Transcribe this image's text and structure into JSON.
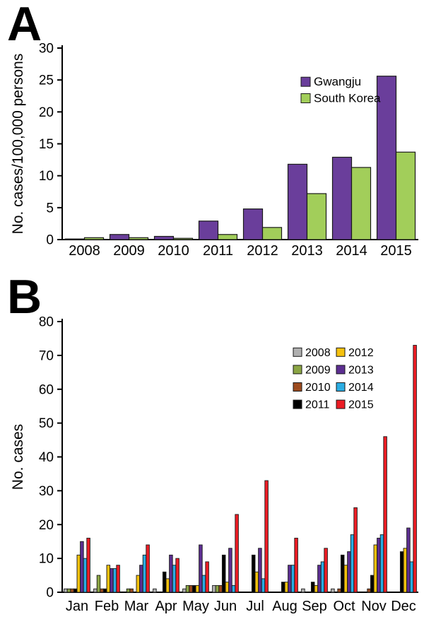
{
  "figure": {
    "panel_a_label": "A",
    "panel_b_label": "B"
  },
  "chart_data": [
    {
      "panel": "A",
      "type": "bar",
      "title": "",
      "xlabel": "",
      "ylabel": "No. cases/100,000 persons",
      "ylim": [
        0,
        30
      ],
      "yticks": [
        0,
        5,
        10,
        15,
        20,
        25,
        30
      ],
      "grid": false,
      "legend_position": "upper-right-inside",
      "categories": [
        "2008",
        "2009",
        "2010",
        "2011",
        "2012",
        "2013",
        "2014",
        "2015"
      ],
      "series": [
        {
          "name": "Gwangju",
          "color": "#6a3e9b",
          "values": [
            0.1,
            0.8,
            0.5,
            2.9,
            4.8,
            11.8,
            12.9,
            25.6
          ]
        },
        {
          "name": "South Korea",
          "color": "#a2ce5a",
          "values": [
            0.3,
            0.3,
            0.2,
            0.8,
            1.9,
            7.2,
            11.3,
            13.7
          ]
        }
      ]
    },
    {
      "panel": "B",
      "type": "bar",
      "title": "",
      "xlabel": "",
      "ylabel": "No. cases",
      "ylim": [
        0,
        80
      ],
      "yticks": [
        0,
        10,
        20,
        30,
        40,
        50,
        60,
        70,
        80
      ],
      "grid": false,
      "legend_position": "upper-right-inside-two-columns",
      "categories": [
        "Jan",
        "Feb",
        "Mar",
        "Apr",
        "May",
        "Jun",
        "Jul",
        "Aug",
        "Sep",
        "Oct",
        "Nov",
        "Dec"
      ],
      "series": [
        {
          "name": "2008",
          "color": "#b0b0b0",
          "values": [
            1,
            1,
            0,
            1,
            1,
            2,
            0,
            0,
            1,
            1,
            0,
            0
          ]
        },
        {
          "name": "2009",
          "color": "#8ba544",
          "values": [
            1,
            5,
            1,
            0,
            2,
            2,
            0,
            0,
            0,
            0,
            0,
            0
          ]
        },
        {
          "name": "2010",
          "color": "#9c4a1e",
          "values": [
            1,
            1,
            1,
            0,
            2,
            2,
            0,
            0,
            0,
            1,
            1,
            0
          ]
        },
        {
          "name": "2011",
          "color": "#000000",
          "values": [
            1,
            1,
            0,
            6,
            2,
            11,
            11,
            3,
            3,
            11,
            5,
            12
          ]
        },
        {
          "name": "2012",
          "color": "#f5c10e",
          "values": [
            11,
            8,
            5,
            4,
            2,
            3,
            6,
            3,
            2,
            8,
            14,
            13
          ]
        },
        {
          "name": "2013",
          "color": "#5c2e91",
          "values": [
            15,
            7,
            8,
            11,
            14,
            13,
            13,
            8,
            8,
            12,
            16,
            19
          ]
        },
        {
          "name": "2014",
          "color": "#2aace2",
          "values": [
            10,
            7,
            11,
            8,
            5,
            2,
            4,
            8,
            9,
            17,
            17,
            9
          ]
        },
        {
          "name": "2015",
          "color": "#ec1c24",
          "values": [
            16,
            8,
            14,
            10,
            9,
            23,
            33,
            16,
            13,
            25,
            46,
            73
          ]
        }
      ]
    }
  ]
}
